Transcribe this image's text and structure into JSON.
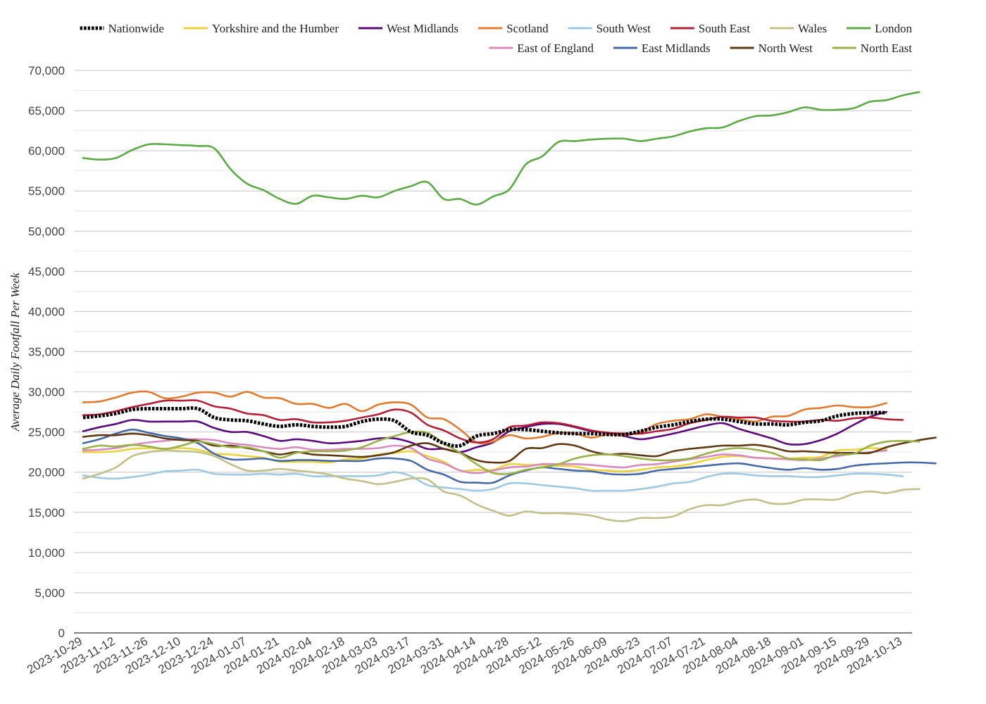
{
  "chart_data": {
    "type": "line",
    "title": "",
    "xlabel": "",
    "ylabel": "Average Daily Footfall Per Week",
    "ylim": [
      0,
      70000
    ],
    "ytick_labels": [
      "0",
      "5,000",
      "10,000",
      "15,000",
      "20,000",
      "25,000",
      "30,000",
      "35,000",
      "40,000",
      "45,000",
      "50,000",
      "55,000",
      "60,000",
      "65,000",
      "70,000"
    ],
    "x_start": "2023-10-29",
    "x_tick_labels": [
      "2023-10-29",
      "2023-11-12",
      "2023-11-26",
      "2023-12-10",
      "2023-12-24",
      "2024-01-07",
      "2024-01-21",
      "2024-02-04",
      "2024-02-18",
      "2024-03-03",
      "2024-03-17",
      "2024-03-31",
      "2024-04-14",
      "2024-04-28",
      "2024-05-12",
      "2024-05-26",
      "2024-06-09",
      "2024-06-23",
      "2024-07-07",
      "2024-07-21",
      "2024-08-04",
      "2024-08-18",
      "2024-09-01",
      "2024-09-15",
      "2024-09-29",
      "2024-10-13"
    ],
    "grid": true,
    "legend_position": "top",
    "series": [
      {
        "name": "Nationwide",
        "color": "#000000",
        "dashed": true,
        "values": [
          26800,
          27000,
          27300,
          27800,
          27900,
          27900,
          27900,
          27900,
          26800,
          26500,
          26400,
          26000,
          25700,
          25900,
          25700,
          25600,
          25700,
          26300,
          26600,
          26400,
          25000,
          24600,
          23600,
          23300,
          24500,
          24800,
          25300,
          25300,
          25100,
          24900,
          24800,
          24800,
          24700,
          24700,
          25100,
          25600,
          25900,
          26300,
          26600,
          26600,
          26300,
          26000,
          26000,
          25900,
          26200,
          26400,
          27000,
          27300,
          27400,
          27400
        ]
      },
      {
        "name": "Yorkshire and the Humber",
        "color": "#ECD33D",
        "values": [
          22500,
          22500,
          22600,
          22900,
          23000,
          22900,
          23000,
          22800,
          22300,
          22200,
          22000,
          21800,
          21300,
          21300,
          21300,
          21200,
          21600,
          21700,
          22200,
          22400,
          22600,
          22000,
          21300,
          20200,
          20300,
          20300,
          21000,
          20900,
          20900,
          20800,
          20700,
          20300,
          20200,
          20100,
          20300,
          20600,
          20700,
          21000,
          21500,
          21900,
          22000,
          21800,
          21700,
          21700,
          21800,
          21900,
          22700,
          22800,
          23000,
          22900
        ]
      },
      {
        "name": "West Midlands",
        "color": "#5B0A7A",
        "values": [
          25100,
          25600,
          26000,
          26500,
          26300,
          26300,
          26300,
          26300,
          25500,
          25000,
          25000,
          24500,
          23900,
          24100,
          23900,
          23600,
          23700,
          23900,
          24200,
          24200,
          23700,
          22900,
          22900,
          22500,
          23100,
          23700,
          25100,
          25600,
          26000,
          26000,
          25600,
          25100,
          24900,
          24500,
          24100,
          24400,
          24800,
          25300,
          25800,
          26100,
          25400,
          24800,
          24200,
          23500,
          23500,
          24000,
          24800,
          25900,
          26900,
          27500
        ]
      },
      {
        "name": "Scotland",
        "color": "#E07B30",
        "values": [
          28700,
          28800,
          29300,
          29900,
          30000,
          29200,
          29400,
          29900,
          29900,
          29400,
          30000,
          29300,
          29200,
          28500,
          28500,
          28000,
          28500,
          27600,
          28400,
          28700,
          28400,
          26800,
          26600,
          25300,
          23700,
          23800,
          24600,
          24200,
          24400,
          24900,
          24800,
          24300,
          24700,
          24600,
          25000,
          26000,
          26400,
          26600,
          27200,
          26900,
          26600,
          26300,
          26900,
          27000,
          27800,
          28000,
          28300,
          28100,
          28100,
          28600
        ]
      },
      {
        "name": "South West",
        "color": "#9EC9E2",
        "values": [
          19600,
          19300,
          19200,
          19400,
          19700,
          20100,
          20200,
          20300,
          19800,
          19700,
          19700,
          19800,
          19700,
          19800,
          19500,
          19500,
          19500,
          19500,
          19600,
          20000,
          19500,
          18400,
          18100,
          17900,
          17700,
          17900,
          18600,
          18600,
          18400,
          18200,
          18000,
          17700,
          17700,
          17700,
          17900,
          18200,
          18600,
          18800,
          19400,
          19800,
          19800,
          19600,
          19500,
          19500,
          19400,
          19400,
          19600,
          19800,
          19800,
          19700,
          19500
        ]
      },
      {
        "name": "South East",
        "color": "#B32037",
        "values": [
          27100,
          27200,
          27600,
          28100,
          28500,
          28900,
          28900,
          28900,
          28200,
          27900,
          27300,
          27100,
          26500,
          26600,
          26200,
          26200,
          26400,
          26800,
          27200,
          27800,
          27400,
          25900,
          25200,
          24200,
          23700,
          24100,
          25600,
          25800,
          26200,
          26100,
          25700,
          25200,
          24900,
          24800,
          24800,
          25100,
          25400,
          26100,
          26500,
          26900,
          26800,
          26800,
          26400,
          26300,
          26300,
          26500,
          26400,
          26700,
          26800,
          26600,
          26500
        ]
      },
      {
        "name": "Wales",
        "color": "#C2C08A",
        "values": [
          19200,
          19800,
          20600,
          22000,
          22500,
          22700,
          22600,
          22500,
          22000,
          21000,
          20200,
          20200,
          20400,
          20200,
          20000,
          19700,
          19200,
          18900,
          18500,
          18800,
          19200,
          19100,
          17600,
          17100,
          16000,
          15200,
          14600,
          15100,
          14900,
          14900,
          14800,
          14600,
          14100,
          13900,
          14300,
          14300,
          14500,
          15400,
          15900,
          15900,
          16400,
          16600,
          16100,
          16100,
          16600,
          16600,
          16600,
          17300,
          17600,
          17400,
          17800,
          17900
        ]
      },
      {
        "name": "London",
        "color": "#5BAA46",
        "values": [
          59100,
          58900,
          59100,
          60100,
          60800,
          60800,
          60700,
          60600,
          60300,
          57700,
          55900,
          55100,
          54000,
          53400,
          54400,
          54200,
          54000,
          54400,
          54200,
          55000,
          55600,
          56100,
          54000,
          54000,
          53300,
          54300,
          55200,
          58300,
          59300,
          61100,
          61200,
          61400,
          61500,
          61500,
          61200,
          61500,
          61800,
          62400,
          62800,
          62900,
          63700,
          64300,
          64400,
          64800,
          65400,
          65100,
          65100,
          65300,
          66100,
          66300,
          66900,
          67300
        ]
      },
      {
        "name": "East of England",
        "color": "#D88BBE",
        "values": [
          22700,
          22800,
          23000,
          23400,
          23700,
          23900,
          24100,
          24100,
          24000,
          23600,
          23400,
          23100,
          22900,
          23100,
          22800,
          22800,
          22900,
          22900,
          23000,
          23300,
          23000,
          21700,
          21100,
          20200,
          19900,
          20200,
          20600,
          20700,
          21000,
          21000,
          21000,
          20900,
          20700,
          20600,
          20900,
          21000,
          21300,
          21600,
          21900,
          22200,
          22100,
          21800,
          21700,
          21600,
          21500,
          21700,
          22000,
          22300,
          22500,
          22700
        ]
      },
      {
        "name": "East Midlands",
        "color": "#4669A6",
        "values": [
          23600,
          24100,
          24800,
          25300,
          24900,
          24500,
          24200,
          23600,
          22300,
          21600,
          21600,
          21700,
          21400,
          21500,
          21500,
          21400,
          21400,
          21400,
          21700,
          21700,
          21400,
          20300,
          19700,
          18800,
          18700,
          18700,
          19600,
          20200,
          20600,
          20400,
          20200,
          20100,
          19800,
          19700,
          19800,
          20200,
          20400,
          20600,
          20800,
          21000,
          21100,
          20800,
          20500,
          20300,
          20500,
          20300,
          20400,
          20800,
          21000,
          21100,
          21200,
          21200,
          21100
        ]
      },
      {
        "name": "North West",
        "color": "#5E3A13",
        "values": [
          24400,
          24600,
          24600,
          24800,
          24600,
          24200,
          24000,
          23900,
          23300,
          23300,
          23000,
          22600,
          22200,
          22500,
          22200,
          22100,
          22000,
          21900,
          22100,
          22500,
          23300,
          23600,
          22900,
          22400,
          21500,
          21200,
          21400,
          22900,
          23000,
          23500,
          23300,
          22600,
          22200,
          22300,
          22100,
          22000,
          22600,
          22900,
          23100,
          23300,
          23300,
          23400,
          23100,
          22600,
          22600,
          22500,
          22400,
          22400,
          22400,
          23100,
          23600,
          24000,
          24300
        ]
      },
      {
        "name": "North East",
        "color": "#9AB14A",
        "values": [
          22900,
          23300,
          23200,
          23400,
          23200,
          22900,
          23300,
          23800,
          23500,
          23100,
          23100,
          22600,
          21800,
          22400,
          22600,
          22600,
          22700,
          23100,
          23900,
          24500,
          25000,
          24900,
          23600,
          22400,
          21000,
          19900,
          19800,
          20300,
          20600,
          21000,
          21700,
          22100,
          22200,
          22000,
          21700,
          21500,
          21500,
          21700,
          22300,
          22800,
          23000,
          22800,
          22400,
          21700,
          21600,
          21500,
          22200,
          22300,
          23300,
          23800,
          23900,
          23800
        ]
      }
    ]
  }
}
